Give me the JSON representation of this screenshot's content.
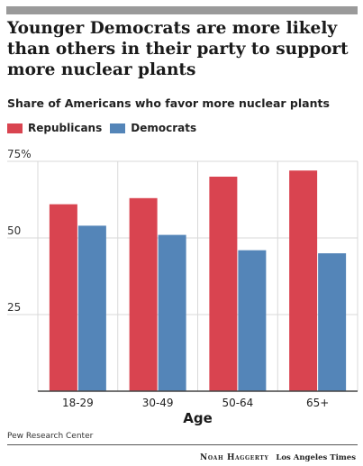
{
  "title": "Younger Democrats are more likely than others in their party to support more nuclear plants",
  "subtitle": "Share of Americans who favor more nuclear plants",
  "colors": {
    "republicans": "#d94450",
    "democrats": "#5485b8",
    "grid": "#d9d9d9",
    "axis": "#444444",
    "topRule": "#9a9a9a"
  },
  "chart_data": {
    "type": "bar",
    "categories": [
      "18-29",
      "30-49",
      "50-64",
      "65+"
    ],
    "series": [
      {
        "name": "Republicans",
        "values": [
          61,
          63,
          70,
          72
        ]
      },
      {
        "name": "Democrats",
        "values": [
          54,
          51,
          46,
          45
        ]
      }
    ],
    "xlabel": "Age",
    "ylabel": "",
    "ylim": [
      0,
      75
    ],
    "yticks": [
      25,
      50,
      75
    ],
    "ytick_labels": [
      "25",
      "50",
      "75%"
    ],
    "grid": true,
    "legend": "top-left"
  },
  "source": "Pew Research Center",
  "credit": {
    "author": "Noah Haggerty",
    "org": "Los Angeles Times"
  }
}
